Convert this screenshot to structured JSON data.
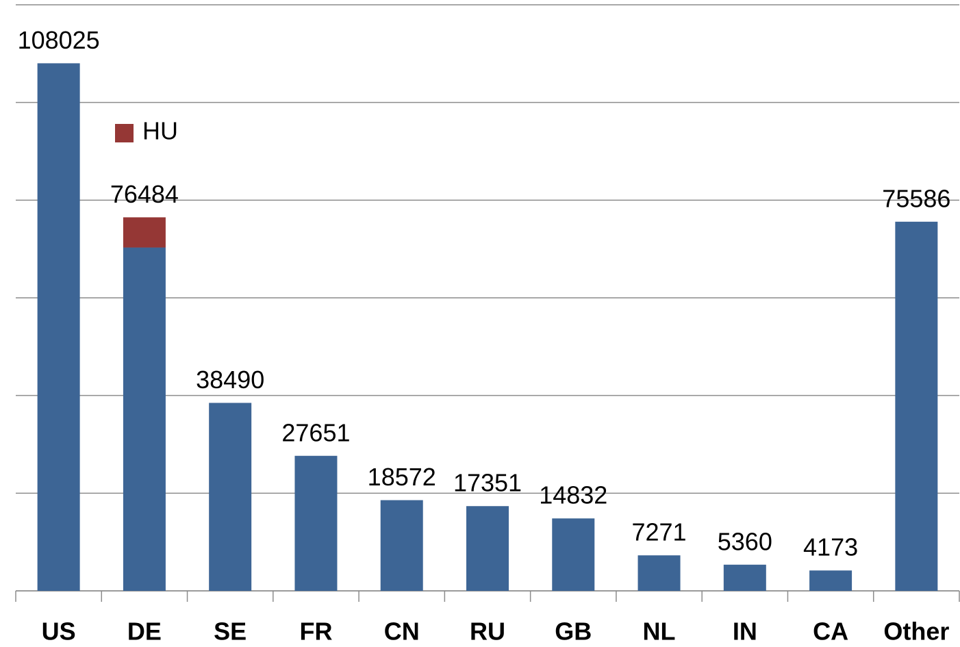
{
  "chart_data": {
    "type": "bar",
    "categories": [
      "US",
      "DE",
      "SE",
      "FR",
      "CN",
      "RU",
      "GB",
      "NL",
      "IN",
      "CA",
      "Other"
    ],
    "series": [
      {
        "color": "#3d6595",
        "values": [
          108025,
          70300,
          38490,
          27651,
          18572,
          17351,
          14832,
          7271,
          5360,
          4173,
          75586
        ]
      },
      {
        "name": "HU",
        "color": "#953735",
        "values": [
          null,
          6184,
          null,
          null,
          null,
          null,
          null,
          null,
          null,
          null,
          null
        ]
      }
    ],
    "totals": [
      108025,
      76484,
      38490,
      27651,
      18572,
      17351,
      14832,
      7271,
      5360,
      4173,
      75586
    ],
    "stacked": true,
    "ylim": [
      0,
      120000
    ],
    "yticks": [
      0,
      20000,
      40000,
      60000,
      80000,
      100000,
      120000
    ],
    "grid": true,
    "legend": "upper-left"
  }
}
